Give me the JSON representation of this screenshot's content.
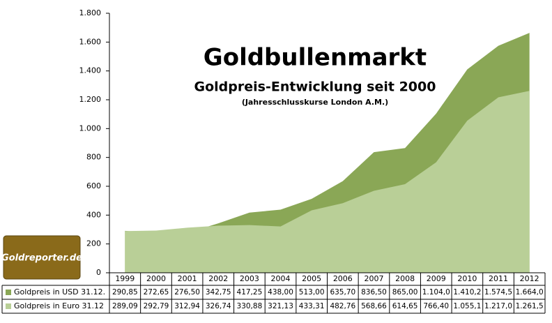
{
  "chart_data": {
    "type": "area",
    "title": "Goldbullenmarkt",
    "subtitle": "Goldpreis-Entwicklung seit 2000",
    "note": "(Jahresschlusskurse London A.M.)",
    "logo": "Goldreporter.de",
    "categories": [
      "1999",
      "2000",
      "2001",
      "2002",
      "2003",
      "2004",
      "2005",
      "2006",
      "2007",
      "2008",
      "2009",
      "2010",
      "2011",
      "2012"
    ],
    "series": [
      {
        "name": "Goldpreis in USD 31.12.",
        "color": "#8aa756",
        "values": [
          290.85,
          272.65,
          276.5,
          342.75,
          417.25,
          438.0,
          513.0,
          635.7,
          836.5,
          865.0,
          1104.0,
          1410.2,
          1574.5,
          1664.0
        ],
        "value_labels": [
          "290,85",
          "272,65",
          "276,50",
          "342,75",
          "417,25",
          "438,00",
          "513,00",
          "635,70",
          "836,50",
          "865,00",
          "1.104,0",
          "1.410,2",
          "1.574,5",
          "1.664,0"
        ]
      },
      {
        "name": "Goldpreis in Euro 31.12",
        "color": "#b9cf97",
        "values": [
          289.09,
          292.79,
          312.94,
          326.74,
          330.88,
          321.13,
          433.31,
          482.76,
          568.66,
          614.65,
          766.4,
          1055.1,
          1217.0,
          1261.5
        ],
        "value_labels": [
          "289,09",
          "292,79",
          "312,94",
          "326,74",
          "330,88",
          "321,13",
          "433,31",
          "482,76",
          "568,66",
          "614,65",
          "766,40",
          "1.055,1",
          "1.217,0",
          "1.261,5"
        ]
      }
    ],
    "ylim": [
      0,
      1800
    ],
    "yticks": [
      0,
      200,
      400,
      600,
      800,
      {
        "value": 1000,
        "label": "1.000"
      },
      {
        "value": 1200,
        "label": "1.200"
      },
      {
        "value": 1400,
        "label": "1.400"
      },
      {
        "value": 1600,
        "label": "1.600"
      },
      {
        "value": 1800,
        "label": "1.800"
      }
    ],
    "grid": false
  }
}
